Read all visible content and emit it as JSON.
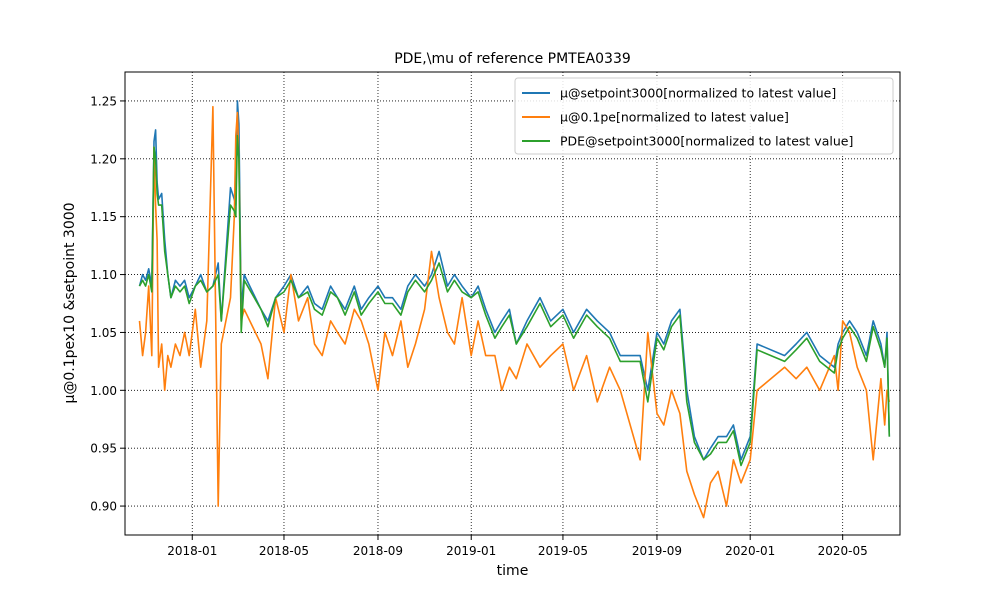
{
  "chart_data": {
    "type": "line",
    "title": "PDE,\\mu of reference PMTEA0339",
    "xlabel": "time",
    "ylabel": "μ@0.1pex10 &setpoint 3000",
    "x_axis": "date",
    "xlim": [
      "2017-10-05",
      "2020-07-15"
    ],
    "ylim": [
      0.875,
      1.275
    ],
    "x_ticks": [
      {
        "date": "2018-01-01",
        "label": "2018-01"
      },
      {
        "date": "2018-05-01",
        "label": "2018-05"
      },
      {
        "date": "2018-09-01",
        "label": "2018-09"
      },
      {
        "date": "2019-01-01",
        "label": "2019-01"
      },
      {
        "date": "2019-05-01",
        "label": "2019-05"
      },
      {
        "date": "2019-09-01",
        "label": "2019-09"
      },
      {
        "date": "2020-01-01",
        "label": "2020-01"
      },
      {
        "date": "2020-05-01",
        "label": "2020-05"
      }
    ],
    "y_ticks": [
      {
        "value": 0.9,
        "label": "0.90"
      },
      {
        "value": 0.95,
        "label": "0.95"
      },
      {
        "value": 1.0,
        "label": "1.00"
      },
      {
        "value": 1.05,
        "label": "1.05"
      },
      {
        "value": 1.1,
        "label": "1.10"
      },
      {
        "value": 1.15,
        "label": "1.15"
      },
      {
        "value": 1.2,
        "label": "1.20"
      },
      {
        "value": 1.25,
        "label": "1.25"
      }
    ],
    "grid": true,
    "grid_style": "dotted",
    "legend_position": "upper right",
    "series": [
      {
        "name": "μ@setpoint3000[normalized to latest value]",
        "color": "#1f77b4",
        "x": [
          "2017-10-24",
          "2017-10-28",
          "2017-11-01",
          "2017-11-05",
          "2017-11-09",
          "2017-11-12",
          "2017-11-14",
          "2017-11-16",
          "2017-11-18",
          "2017-11-22",
          "2017-11-26",
          "2017-11-30",
          "2017-12-04",
          "2017-12-10",
          "2017-12-16",
          "2017-12-22",
          "2017-12-28",
          "2018-01-05",
          "2018-01-12",
          "2018-01-20",
          "2018-01-28",
          "2018-02-04",
          "2018-02-08",
          "2018-02-20",
          "2018-02-25",
          "2018-02-27",
          "2018-03-01",
          "2018-03-03",
          "2018-03-06",
          "2018-03-10",
          "2018-04-01",
          "2018-04-10",
          "2018-04-20",
          "2018-05-01",
          "2018-05-10",
          "2018-05-20",
          "2018-06-01",
          "2018-06-10",
          "2018-06-20",
          "2018-07-01",
          "2018-07-10",
          "2018-07-20",
          "2018-08-01",
          "2018-08-10",
          "2018-08-20",
          "2018-09-01",
          "2018-09-10",
          "2018-09-20",
          "2018-10-01",
          "2018-10-10",
          "2018-10-20",
          "2018-11-01",
          "2018-11-10",
          "2018-11-20",
          "2018-12-01",
          "2018-12-10",
          "2018-12-20",
          "2019-01-01",
          "2019-01-10",
          "2019-01-20",
          "2019-02-01",
          "2019-02-10",
          "2019-02-20",
          "2019-03-01",
          "2019-03-15",
          "2019-04-01",
          "2019-04-15",
          "2019-05-01",
          "2019-05-15",
          "2019-06-01",
          "2019-06-15",
          "2019-07-01",
          "2019-07-15",
          "2019-08-10",
          "2019-08-20",
          "2019-09-01",
          "2019-09-10",
          "2019-09-20",
          "2019-10-01",
          "2019-10-10",
          "2019-10-20",
          "2019-11-01",
          "2019-11-10",
          "2019-11-20",
          "2019-12-01",
          "2019-12-10",
          "2019-12-20",
          "2020-01-01",
          "2020-01-10",
          "2020-02-15",
          "2020-03-01",
          "2020-03-15",
          "2020-04-01",
          "2020-04-20",
          "2020-04-25",
          "2020-05-01",
          "2020-05-10",
          "2020-05-20",
          "2020-06-01",
          "2020-06-10",
          "2020-06-20",
          "2020-06-25",
          "2020-06-28",
          "2020-07-01"
        ],
        "y": [
          1.09,
          1.1,
          1.095,
          1.105,
          1.09,
          1.215,
          1.225,
          1.18,
          1.165,
          1.17,
          1.13,
          1.1,
          1.08,
          1.095,
          1.09,
          1.095,
          1.08,
          1.09,
          1.1,
          1.085,
          1.09,
          1.11,
          1.06,
          1.175,
          1.165,
          1.16,
          1.25,
          1.23,
          1.07,
          1.1,
          1.07,
          1.06,
          1.08,
          1.09,
          1.1,
          1.08,
          1.09,
          1.075,
          1.07,
          1.09,
          1.08,
          1.07,
          1.09,
          1.07,
          1.08,
          1.09,
          1.08,
          1.08,
          1.07,
          1.09,
          1.1,
          1.09,
          1.1,
          1.12,
          1.09,
          1.1,
          1.09,
          1.08,
          1.09,
          1.07,
          1.05,
          1.06,
          1.07,
          1.04,
          1.06,
          1.08,
          1.06,
          1.07,
          1.05,
          1.07,
          1.06,
          1.05,
          1.03,
          1.03,
          1.0,
          1.05,
          1.04,
          1.06,
          1.07,
          1.0,
          0.96,
          0.94,
          0.95,
          0.96,
          0.96,
          0.97,
          0.94,
          0.96,
          1.04,
          1.03,
          1.04,
          1.05,
          1.03,
          1.02,
          1.04,
          1.05,
          1.06,
          1.05,
          1.03,
          1.06,
          1.04,
          1.02,
          1.05,
          0.96
        ],
        "gaps_note": ""
      },
      {
        "name": "μ@0.1pe[normalized to latest value]",
        "color": "#ff7f0e",
        "x": [
          "2017-10-24",
          "2017-10-28",
          "2017-11-01",
          "2017-11-05",
          "2017-11-09",
          "2017-11-12",
          "2017-11-14",
          "2017-11-16",
          "2017-11-18",
          "2017-11-22",
          "2017-11-26",
          "2017-11-30",
          "2017-12-04",
          "2017-12-10",
          "2017-12-16",
          "2017-12-22",
          "2017-12-28",
          "2018-01-05",
          "2018-01-12",
          "2018-01-20",
          "2018-01-28",
          "2018-02-04",
          "2018-02-08",
          "2018-02-20",
          "2018-02-25",
          "2018-02-27",
          "2018-03-01",
          "2018-03-03",
          "2018-03-06",
          "2018-03-10",
          "2018-04-01",
          "2018-04-10",
          "2018-04-20",
          "2018-05-01",
          "2018-05-10",
          "2018-05-20",
          "2018-06-01",
          "2018-06-10",
          "2018-06-20",
          "2018-07-01",
          "2018-07-10",
          "2018-07-20",
          "2018-08-01",
          "2018-08-10",
          "2018-08-20",
          "2018-09-01",
          "2018-09-10",
          "2018-09-20",
          "2018-10-01",
          "2018-10-10",
          "2018-10-20",
          "2018-11-01",
          "2018-11-10",
          "2018-11-20",
          "2018-12-01",
          "2018-12-10",
          "2018-12-20",
          "2019-01-01",
          "2019-01-10",
          "2019-01-20",
          "2019-02-01",
          "2019-02-10",
          "2019-02-20",
          "2019-03-01",
          "2019-03-15",
          "2019-04-01",
          "2019-04-15",
          "2019-05-01",
          "2019-05-15",
          "2019-06-01",
          "2019-06-15",
          "2019-07-01",
          "2019-07-15",
          "2019-08-10",
          "2019-08-20",
          "2019-09-01",
          "2019-09-10",
          "2019-09-20",
          "2019-10-01",
          "2019-10-10",
          "2019-10-20",
          "2019-11-01",
          "2019-11-10",
          "2019-11-20",
          "2019-12-01",
          "2019-12-10",
          "2019-12-20",
          "2020-01-01",
          "2020-01-10",
          "2020-02-15",
          "2020-03-01",
          "2020-03-15",
          "2020-04-01",
          "2020-04-20",
          "2020-04-25",
          "2020-05-01",
          "2020-05-10",
          "2020-05-20",
          "2020-06-01",
          "2020-06-10",
          "2020-06-20",
          "2020-06-25",
          "2020-06-28",
          "2020-07-01"
        ],
        "y": [
          1.06,
          1.03,
          1.05,
          1.09,
          1.03,
          1.21,
          1.16,
          1.13,
          1.02,
          1.04,
          1.0,
          1.03,
          1.02,
          1.04,
          1.03,
          1.05,
          1.03,
          1.07,
          1.02,
          1.06,
          1.245,
          0.9,
          1.04,
          1.08,
          1.15,
          1.22,
          1.24,
          1.2,
          1.06,
          1.07,
          1.04,
          1.01,
          1.08,
          1.05,
          1.1,
          1.06,
          1.08,
          1.04,
          1.03,
          1.06,
          1.05,
          1.04,
          1.07,
          1.06,
          1.04,
          1.0,
          1.05,
          1.03,
          1.06,
          1.02,
          1.04,
          1.07,
          1.12,
          1.08,
          1.05,
          1.04,
          1.08,
          1.03,
          1.06,
          1.03,
          1.03,
          1.0,
          1.02,
          1.01,
          1.04,
          1.02,
          1.03,
          1.04,
          1.0,
          1.03,
          0.99,
          1.02,
          1.0,
          0.94,
          1.05,
          0.98,
          0.97,
          1.0,
          0.98,
          0.93,
          0.91,
          0.89,
          0.92,
          0.93,
          0.9,
          0.94,
          0.92,
          0.94,
          1.0,
          1.02,
          1.01,
          1.02,
          1.0,
          1.03,
          1.0,
          1.06,
          1.05,
          1.02,
          1.0,
          0.94,
          1.01,
          0.97,
          1.0,
          0.99
        ],
        "gaps_note": ""
      },
      {
        "name": "PDE@setpoint3000[normalized to latest value]",
        "color": "#2ca02c",
        "x": [
          "2017-10-24",
          "2017-10-28",
          "2017-11-01",
          "2017-11-05",
          "2017-11-09",
          "2017-11-12",
          "2017-11-14",
          "2017-11-16",
          "2017-11-18",
          "2017-11-22",
          "2017-11-26",
          "2017-11-30",
          "2017-12-04",
          "2017-12-10",
          "2017-12-16",
          "2017-12-22",
          "2017-12-28",
          "2018-01-05",
          "2018-01-12",
          "2018-01-20",
          "2018-01-28",
          "2018-02-04",
          "2018-02-08",
          "2018-02-20",
          "2018-02-25",
          "2018-02-27",
          "2018-03-01",
          "2018-03-03",
          "2018-03-06",
          "2018-03-10",
          "2018-04-01",
          "2018-04-10",
          "2018-04-20",
          "2018-05-01",
          "2018-05-10",
          "2018-05-20",
          "2018-06-01",
          "2018-06-10",
          "2018-06-20",
          "2018-07-01",
          "2018-07-10",
          "2018-07-20",
          "2018-08-01",
          "2018-08-10",
          "2018-08-20",
          "2018-09-01",
          "2018-09-10",
          "2018-09-20",
          "2018-10-01",
          "2018-10-10",
          "2018-10-20",
          "2018-11-01",
          "2018-11-10",
          "2018-11-20",
          "2018-12-01",
          "2018-12-10",
          "2018-12-20",
          "2019-01-01",
          "2019-01-10",
          "2019-01-20",
          "2019-02-01",
          "2019-02-10",
          "2019-02-20",
          "2019-03-01",
          "2019-03-15",
          "2019-04-01",
          "2019-04-15",
          "2019-05-01",
          "2019-05-15",
          "2019-06-01",
          "2019-06-15",
          "2019-07-01",
          "2019-07-15",
          "2019-08-10",
          "2019-08-20",
          "2019-09-01",
          "2019-09-10",
          "2019-09-20",
          "2019-10-01",
          "2019-10-10",
          "2019-10-20",
          "2019-11-01",
          "2019-11-10",
          "2019-11-20",
          "2019-12-01",
          "2019-12-10",
          "2019-12-20",
          "2020-01-01",
          "2020-01-10",
          "2020-02-15",
          "2020-03-01",
          "2020-03-15",
          "2020-04-01",
          "2020-04-20",
          "2020-04-25",
          "2020-05-01",
          "2020-05-10",
          "2020-05-20",
          "2020-06-01",
          "2020-06-10",
          "2020-06-20",
          "2020-06-25",
          "2020-06-28",
          "2020-07-01"
        ],
        "y": [
          1.09,
          1.095,
          1.09,
          1.1,
          1.085,
          1.21,
          1.2,
          1.17,
          1.16,
          1.16,
          1.12,
          1.1,
          1.08,
          1.09,
          1.085,
          1.09,
          1.075,
          1.09,
          1.095,
          1.085,
          1.09,
          1.1,
          1.06,
          1.16,
          1.155,
          1.15,
          1.22,
          1.2,
          1.05,
          1.095,
          1.07,
          1.055,
          1.08,
          1.085,
          1.095,
          1.08,
          1.085,
          1.07,
          1.065,
          1.085,
          1.08,
          1.065,
          1.085,
          1.065,
          1.075,
          1.085,
          1.075,
          1.075,
          1.065,
          1.085,
          1.095,
          1.085,
          1.095,
          1.11,
          1.085,
          1.095,
          1.085,
          1.08,
          1.085,
          1.065,
          1.045,
          1.055,
          1.065,
          1.04,
          1.055,
          1.075,
          1.055,
          1.065,
          1.045,
          1.065,
          1.055,
          1.045,
          1.025,
          1.025,
          0.99,
          1.045,
          1.035,
          1.055,
          1.065,
          0.99,
          0.955,
          0.94,
          0.945,
          0.955,
          0.955,
          0.965,
          0.935,
          0.955,
          1.035,
          1.025,
          1.035,
          1.045,
          1.025,
          1.015,
          1.035,
          1.045,
          1.055,
          1.045,
          1.025,
          1.055,
          1.035,
          1.02,
          1.045,
          0.96
        ],
        "gaps_note": ""
      }
    ]
  }
}
